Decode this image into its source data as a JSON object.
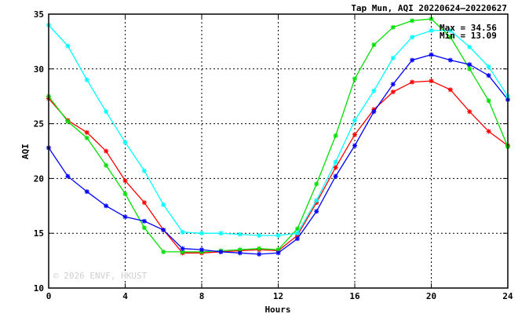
{
  "chart_data": {
    "type": "line",
    "title": "Tap Mun, AQI 20220624—20220627",
    "xlabel": "Hours",
    "ylabel": "AQI",
    "xlim": [
      0,
      24
    ],
    "ylim": [
      10,
      35
    ],
    "xticks": [
      0,
      4,
      8,
      12,
      16,
      20,
      24
    ],
    "yticks": [
      10,
      15,
      20,
      25,
      30,
      35
    ],
    "grid": true,
    "annotations": {
      "max": "Max = 34.56",
      "min": "Min = 13.09"
    },
    "watermark": "© 2026  ENVF, HKUST",
    "x": [
      0,
      1,
      2,
      3,
      4,
      5,
      6,
      7,
      8,
      9,
      10,
      11,
      12,
      13,
      14,
      15,
      16,
      17,
      18,
      19,
      20,
      21,
      22,
      23,
      24
    ],
    "series": [
      {
        "color": "#ff0000",
        "values": [
          27.3,
          25.3,
          24.2,
          22.5,
          19.8,
          17.8,
          15.3,
          13.2,
          13.2,
          13.3,
          13.4,
          13.5,
          13.4,
          14.8,
          17.8,
          21.0,
          24.0,
          26.3,
          27.9,
          28.8,
          28.9,
          28.1,
          26.1,
          24.3,
          23.0
        ]
      },
      {
        "color": "#00e000",
        "values": [
          27.5,
          25.2,
          23.7,
          21.2,
          18.6,
          15.5,
          13.3,
          13.3,
          13.3,
          13.4,
          13.5,
          13.6,
          13.5,
          15.4,
          19.5,
          23.9,
          29.1,
          32.2,
          33.8,
          34.4,
          34.56,
          32.9,
          30.0,
          27.1,
          22.9
        ]
      },
      {
        "color": "#0000ff",
        "values": [
          22.8,
          20.2,
          18.8,
          17.5,
          16.5,
          16.1,
          15.3,
          13.6,
          13.5,
          13.3,
          13.2,
          13.09,
          13.2,
          14.5,
          17.0,
          20.2,
          23.0,
          26.1,
          28.6,
          30.8,
          31.3,
          30.8,
          30.4,
          29.4,
          27.2
        ]
      },
      {
        "color": "#00ffff",
        "values": [
          34.0,
          32.1,
          29.0,
          26.1,
          23.3,
          20.7,
          17.6,
          15.1,
          15.0,
          15.0,
          14.9,
          14.8,
          14.8,
          15.0,
          18.0,
          21.5,
          25.3,
          28.0,
          31.0,
          32.9,
          33.5,
          33.5,
          32.0,
          30.2,
          27.5
        ]
      }
    ]
  }
}
